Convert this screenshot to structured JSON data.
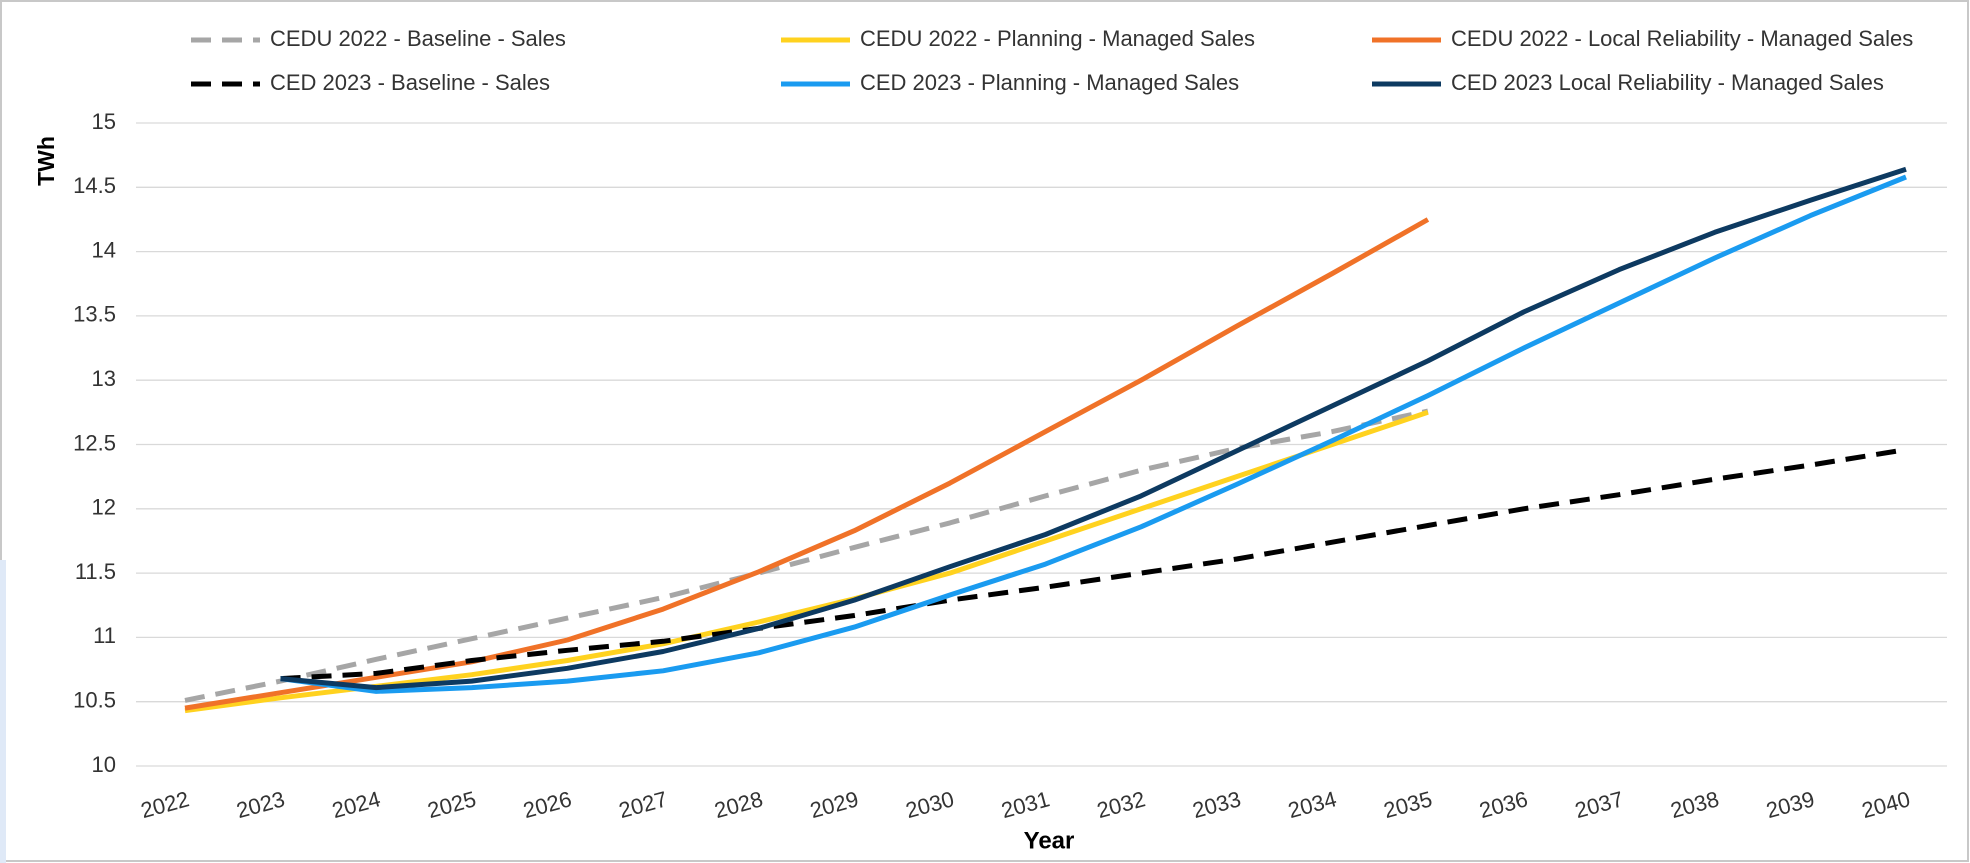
{
  "chart_data": {
    "type": "line",
    "y_label": "TWh",
    "x_label": "Year",
    "categories": [
      "2022",
      "2023",
      "2024",
      "2025",
      "2026",
      "2027",
      "2028",
      "2029",
      "2030",
      "2031",
      "2032",
      "2033",
      "2034",
      "2035",
      "2036",
      "2037",
      "2038",
      "2039",
      "2040"
    ],
    "ylim": [
      10,
      15
    ],
    "yticks": [
      10,
      10.5,
      11,
      11.5,
      12,
      12.5,
      13,
      13.5,
      14,
      14.5,
      15
    ],
    "grid": true,
    "legend": "top",
    "series": [
      {
        "name": "CEDU 2022 - Baseline - Sales",
        "color": "#a6a6a6",
        "dashed": true,
        "values": [
          10.51,
          10.66,
          10.83,
          10.99,
          11.15,
          11.31,
          11.5,
          11.7,
          11.89,
          12.1,
          12.3,
          12.47,
          12.6,
          12.76,
          null,
          null,
          null,
          null,
          null
        ]
      },
      {
        "name": "CEDU 2022 - Planning - Managed Sales",
        "color": "#ffd21f",
        "dashed": false,
        "values": [
          10.43,
          10.53,
          10.62,
          10.71,
          10.82,
          10.95,
          11.12,
          11.3,
          11.5,
          11.75,
          12.0,
          12.25,
          12.5,
          12.75,
          null,
          null,
          null,
          null,
          null
        ]
      },
      {
        "name": "CEDU 2022 - Local Reliability - Managed Sales",
        "color": "#f07228",
        "dashed": false,
        "values": [
          10.45,
          10.57,
          10.69,
          10.81,
          10.98,
          11.22,
          11.51,
          11.83,
          12.2,
          12.6,
          13.0,
          13.42,
          13.83,
          14.25,
          null,
          null,
          null,
          null,
          null
        ]
      },
      {
        "name": "CED 2023 - Baseline - Sales",
        "color": "#000000",
        "dashed": true,
        "values": [
          null,
          10.68,
          10.72,
          10.82,
          10.9,
          10.97,
          11.07,
          11.17,
          11.29,
          11.39,
          11.5,
          11.61,
          11.74,
          11.87,
          12.0,
          12.11,
          12.23,
          12.34,
          12.46
        ]
      },
      {
        "name": "CED 2023 - Planning - Managed Sales",
        "color": "#1a9bf0",
        "dashed": false,
        "values": [
          null,
          10.68,
          10.58,
          10.61,
          10.66,
          10.74,
          10.88,
          11.08,
          11.33,
          11.57,
          11.86,
          12.19,
          12.53,
          12.88,
          13.25,
          13.6,
          13.95,
          14.28,
          14.58
        ]
      },
      {
        "name": "CED 2023 Local Reliability - Managed Sales",
        "color": "#0d3a61",
        "dashed": false,
        "values": [
          null,
          10.68,
          10.61,
          10.66,
          10.76,
          10.89,
          11.07,
          11.29,
          11.55,
          11.8,
          12.1,
          12.45,
          12.8,
          13.15,
          13.53,
          13.86,
          14.15,
          14.4,
          14.64
        ]
      }
    ]
  }
}
